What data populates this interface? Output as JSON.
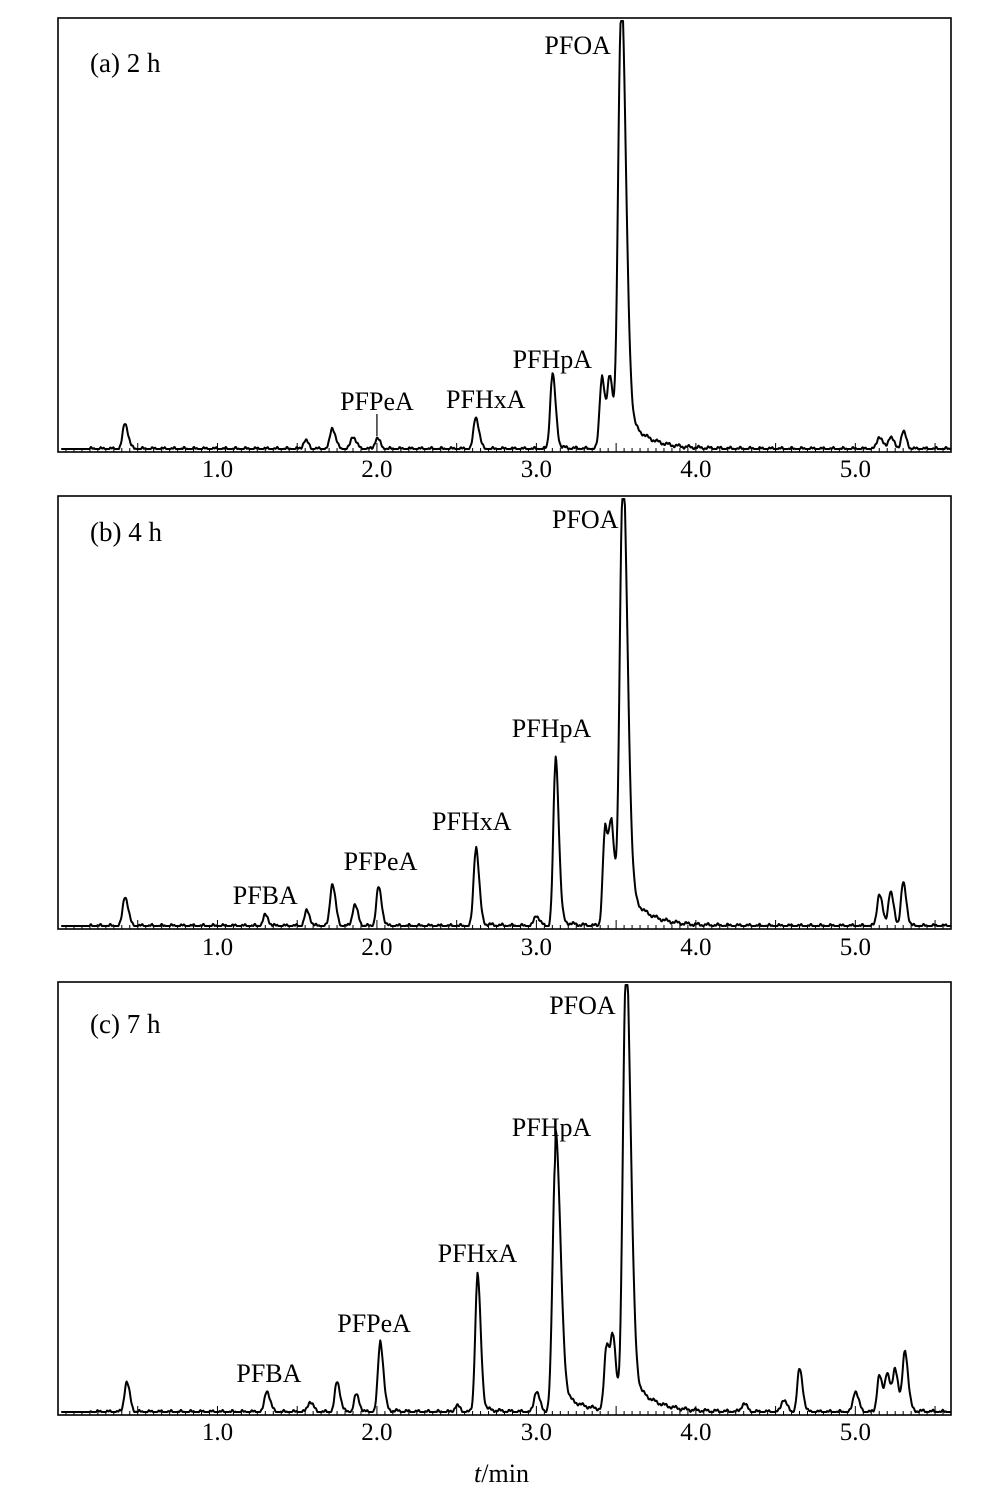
{
  "chart_data": [
    {
      "type": "line",
      "panel_label": "(a) 2 h",
      "xlim": [
        0,
        5.6
      ],
      "ylim": [
        0,
        1
      ],
      "x_ticks": [
        "1.0",
        "2.0",
        "3.0",
        "4.0",
        "5.0"
      ],
      "xlabel": "",
      "peaks": [
        {
          "x": 0.42,
          "y": 0.06
        },
        {
          "x": 1.55,
          "y": 0.02
        },
        {
          "x": 1.72,
          "y": 0.05
        },
        {
          "x": 1.85,
          "y": 0.03
        },
        {
          "x": 2.0,
          "y": 0.025
        },
        {
          "x": 2.62,
          "y": 0.075
        },
        {
          "x": 3.1,
          "y": 0.17
        },
        {
          "x": 3.41,
          "y": 0.165
        },
        {
          "x": 3.46,
          "y": 0.16
        },
        {
          "x": 3.53,
          "y": 1.0
        },
        {
          "x": 5.15,
          "y": 0.03
        },
        {
          "x": 5.22,
          "y": 0.03
        },
        {
          "x": 5.3,
          "y": 0.04
        }
      ],
      "annotations": [
        {
          "text": "PFOA",
          "x": 3.53
        },
        {
          "text": "PFHpA",
          "x": 3.1
        },
        {
          "text": "PFPeA",
          "x": 2.0
        },
        {
          "text": "PFHxA",
          "x": 2.62
        }
      ]
    },
    {
      "type": "line",
      "panel_label": "(b) 4 h",
      "xlim": [
        0,
        5.6
      ],
      "ylim": [
        0,
        1
      ],
      "x_ticks": [
        "1.0",
        "2.0",
        "3.0",
        "4.0",
        "5.0"
      ],
      "xlabel": "",
      "peaks": [
        {
          "x": 0.42,
          "y": 0.07
        },
        {
          "x": 1.3,
          "y": 0.025
        },
        {
          "x": 1.56,
          "y": 0.035
        },
        {
          "x": 1.72,
          "y": 0.1
        },
        {
          "x": 1.86,
          "y": 0.05
        },
        {
          "x": 2.01,
          "y": 0.09
        },
        {
          "x": 2.62,
          "y": 0.18
        },
        {
          "x": 3.0,
          "y": 0.025
        },
        {
          "x": 3.12,
          "y": 0.38
        },
        {
          "x": 3.43,
          "y": 0.22
        },
        {
          "x": 3.47,
          "y": 0.21
        },
        {
          "x": 3.54,
          "y": 1.0
        },
        {
          "x": 5.15,
          "y": 0.075
        },
        {
          "x": 5.22,
          "y": 0.08
        },
        {
          "x": 5.3,
          "y": 0.1
        }
      ],
      "annotations": [
        {
          "text": "PFOA",
          "x": 3.54
        },
        {
          "text": "PFHpA",
          "x": 3.12
        },
        {
          "text": "PFHxA",
          "x": 2.62
        },
        {
          "text": "PFPeA",
          "x": 2.01
        },
        {
          "text": "PFBA",
          "x": 1.3
        }
      ]
    },
    {
      "type": "line",
      "panel_label": "(c) 7 h",
      "xlim": [
        0,
        5.6
      ],
      "ylim": [
        0,
        1
      ],
      "x_ticks": [
        "1.0",
        "2.0",
        "3.0",
        "4.0",
        "5.0"
      ],
      "xlabel": "t/min",
      "xlabel_italic": "t",
      "xlabel_rest": "/min",
      "peaks": [
        {
          "x": 0.43,
          "y": 0.07
        },
        {
          "x": 1.31,
          "y": 0.05
        },
        {
          "x": 1.58,
          "y": 0.025
        },
        {
          "x": 1.75,
          "y": 0.07
        },
        {
          "x": 1.87,
          "y": 0.04
        },
        {
          "x": 2.02,
          "y": 0.16
        },
        {
          "x": 2.5,
          "y": 0.015
        },
        {
          "x": 2.63,
          "y": 0.31
        },
        {
          "x": 3.0,
          "y": 0.05
        },
        {
          "x": 3.12,
          "y": 0.6
        },
        {
          "x": 3.44,
          "y": 0.15
        },
        {
          "x": 3.48,
          "y": 0.15
        },
        {
          "x": 3.56,
          "y": 1.0
        },
        {
          "x": 4.3,
          "y": 0.02
        },
        {
          "x": 4.55,
          "y": 0.03
        },
        {
          "x": 4.65,
          "y": 0.1
        },
        {
          "x": 5.0,
          "y": 0.05
        },
        {
          "x": 5.15,
          "y": 0.085
        },
        {
          "x": 5.2,
          "y": 0.09
        },
        {
          "x": 5.25,
          "y": 0.1
        },
        {
          "x": 5.31,
          "y": 0.14
        }
      ],
      "annotations": [
        {
          "text": "PFOA",
          "x": 3.56
        },
        {
          "text": "PFHpA",
          "x": 3.12
        },
        {
          "text": "PFHxA",
          "x": 2.63
        },
        {
          "text": "PFPeA",
          "x": 2.02
        },
        {
          "text": "PFBA",
          "x": 1.31
        }
      ]
    }
  ]
}
